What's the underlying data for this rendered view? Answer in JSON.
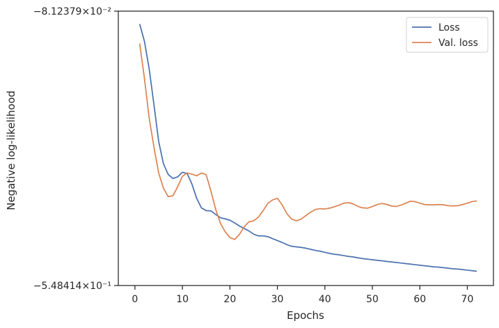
{
  "chart_data": {
    "type": "line",
    "title": "",
    "xlabel": "Epochs",
    "ylabel": "Negative log-likelihood",
    "xlim": [
      -3.5,
      75.5
    ],
    "xticks": [
      0,
      10,
      20,
      30,
      40,
      50,
      60,
      70
    ],
    "ylim_labels": [
      "−8.12379×10⁻²",
      "−5.48414×10⁻¹"
    ],
    "ylim_fraction": [
      0,
      1
    ],
    "y_scale": "symlog-inverted",
    "grid": false,
    "legend_placement": "top-right",
    "colors": {
      "loss": "#4c72b0",
      "val_loss": "#dd8452",
      "axes": "#262626"
    },
    "series": [
      {
        "name": "Loss",
        "x": [
          1,
          2,
          3,
          4,
          5,
          6,
          7,
          8,
          9,
          10,
          11,
          12,
          13,
          14,
          15,
          16,
          17,
          18,
          19,
          20,
          21,
          22,
          23,
          24,
          25,
          26,
          27,
          28,
          29,
          30,
          31,
          32,
          33,
          34,
          35,
          36,
          37,
          38,
          39,
          40,
          41,
          42,
          43,
          44,
          45,
          46,
          47,
          48,
          49,
          50,
          51,
          52,
          53,
          54,
          55,
          56,
          57,
          58,
          59,
          60,
          61,
          62,
          63,
          64,
          65,
          66,
          67,
          68,
          69,
          70,
          71,
          72
        ],
        "values": [
          0.047,
          0.11,
          0.21,
          0.34,
          0.475,
          0.556,
          0.595,
          0.61,
          0.604,
          0.587,
          0.592,
          0.63,
          0.682,
          0.717,
          0.727,
          0.728,
          0.741,
          0.753,
          0.757,
          0.762,
          0.772,
          0.783,
          0.792,
          0.801,
          0.813,
          0.819,
          0.819,
          0.822,
          0.829,
          0.836,
          0.843,
          0.851,
          0.857,
          0.859,
          0.861,
          0.864,
          0.868,
          0.872,
          0.875,
          0.879,
          0.883,
          0.886,
          0.888,
          0.891,
          0.894,
          0.896,
          0.899,
          0.902,
          0.904,
          0.906,
          0.908,
          0.91,
          0.912,
          0.914,
          0.916,
          0.918,
          0.92,
          0.922,
          0.924,
          0.926,
          0.928,
          0.93,
          0.932,
          0.933,
          0.935,
          0.937,
          0.939,
          0.94,
          0.942,
          0.944,
          0.946,
          0.948
        ]
      },
      {
        "name": "Val. loss",
        "x": [
          1,
          2,
          3,
          4,
          5,
          6,
          7,
          8,
          9,
          10,
          11,
          12,
          13,
          14,
          15,
          16,
          17,
          18,
          19,
          20,
          21,
          22,
          23,
          24,
          25,
          26,
          27,
          28,
          29,
          30,
          31,
          32,
          33,
          34,
          35,
          36,
          37,
          38,
          39,
          40,
          41,
          42,
          43,
          44,
          45,
          46,
          47,
          48,
          49,
          50,
          51,
          52,
          53,
          54,
          55,
          56,
          57,
          58,
          59,
          60,
          61,
          62,
          63,
          64,
          65,
          66,
          67,
          68,
          69,
          70,
          71,
          72
        ],
        "values": [
          0.118,
          0.245,
          0.39,
          0.495,
          0.59,
          0.645,
          0.676,
          0.673,
          0.64,
          0.602,
          0.59,
          0.594,
          0.6,
          0.59,
          0.596,
          0.655,
          0.722,
          0.773,
          0.804,
          0.825,
          0.832,
          0.814,
          0.786,
          0.768,
          0.764,
          0.751,
          0.727,
          0.7,
          0.688,
          0.682,
          0.706,
          0.738,
          0.758,
          0.764,
          0.758,
          0.745,
          0.733,
          0.723,
          0.72,
          0.721,
          0.718,
          0.713,
          0.707,
          0.7,
          0.698,
          0.703,
          0.712,
          0.717,
          0.718,
          0.712,
          0.705,
          0.701,
          0.704,
          0.71,
          0.712,
          0.707,
          0.7,
          0.693,
          0.694,
          0.7,
          0.705,
          0.706,
          0.706,
          0.705,
          0.706,
          0.709,
          0.71,
          0.709,
          0.705,
          0.7,
          0.694,
          0.692
        ]
      }
    ]
  }
}
